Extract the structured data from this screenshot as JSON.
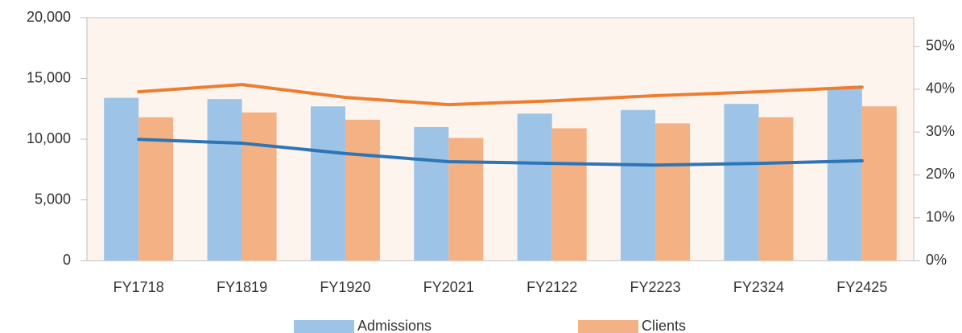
{
  "chart_data": {
    "type": "bar_line_combo",
    "categories": [
      "FY1718",
      "FY1819",
      "FY1920",
      "FY2021",
      "FY2122",
      "FY2223",
      "FY2324",
      "FY2425"
    ],
    "series": [
      {
        "name": "Admissions",
        "type": "bar",
        "color": "#9dc3e6",
        "values": [
          13400,
          13300,
          12700,
          11000,
          12100,
          12400,
          12900,
          14300
        ]
      },
      {
        "name": "Clients",
        "type": "bar",
        "color": "#f4b183",
        "values": [
          11800,
          12200,
          11600,
          10100,
          10900,
          11300,
          11800,
          12700
        ]
      },
      {
        "type": "line",
        "axis": "y2",
        "color": "#ed7d31",
        "values": [
          39.4,
          41.1,
          38.1,
          36.4,
          37.3,
          38.5,
          39.4,
          40.5
        ]
      },
      {
        "type": "line",
        "axis": "y2",
        "color": "#2e75b6",
        "values": [
          28.3,
          27.4,
          25.0,
          23.1,
          22.7,
          22.3,
          22.7,
          23.3
        ]
      }
    ],
    "ylim": [
      0,
      20000
    ],
    "yticks": [
      0,
      {
        "value": 5000,
        "label": "5,000"
      },
      {
        "value": 10000,
        "label": "10,000"
      },
      {
        "value": 15000,
        "label": "15,000"
      },
      {
        "value": 20000,
        "label": "20,000"
      }
    ],
    "y2lim": [
      0,
      56.7
    ],
    "y2ticks": [
      {
        "value": 0,
        "label": "0%"
      },
      {
        "value": 10,
        "label": "10%"
      },
      {
        "value": 20,
        "label": "20%"
      },
      {
        "value": 30,
        "label": "30%"
      },
      {
        "value": 40,
        "label": "40%"
      },
      {
        "value": 50,
        "label": "50%"
      }
    ],
    "legend": "bottom"
  }
}
